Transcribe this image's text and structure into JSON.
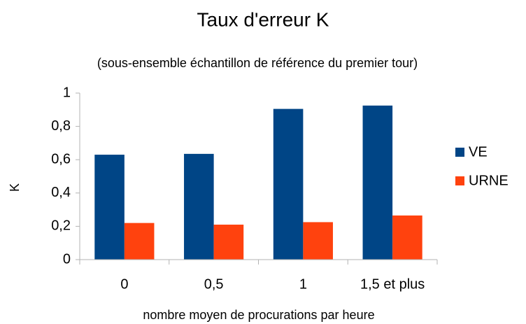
{
  "chart_data": {
    "type": "bar",
    "title": "Taux d'erreur K",
    "subtitle": "(sous-ensemble échantillon de référence du premier tour)",
    "x_label": "nombre moyen de procurations par heure",
    "y_label": "K",
    "categories": [
      "0",
      "0,5",
      "1",
      "1,5 et plus"
    ],
    "series": [
      {
        "name": "VE",
        "color": "#004586",
        "values": [
          0.63,
          0.635,
          0.905,
          0.925
        ]
      },
      {
        "name": "URNE",
        "color": "#ff420e",
        "values": [
          0.22,
          0.21,
          0.225,
          0.265
        ]
      }
    ],
    "ylim": [
      0,
      1
    ],
    "yticks": [
      0,
      {
        "value": 0.2,
        "label": "0,2"
      },
      {
        "value": 0.4,
        "label": "0,4"
      },
      {
        "value": 0.6,
        "label": "0,6"
      },
      {
        "value": 0.8,
        "label": "0,8"
      },
      1
    ],
    "grid": false,
    "legend": "right"
  }
}
